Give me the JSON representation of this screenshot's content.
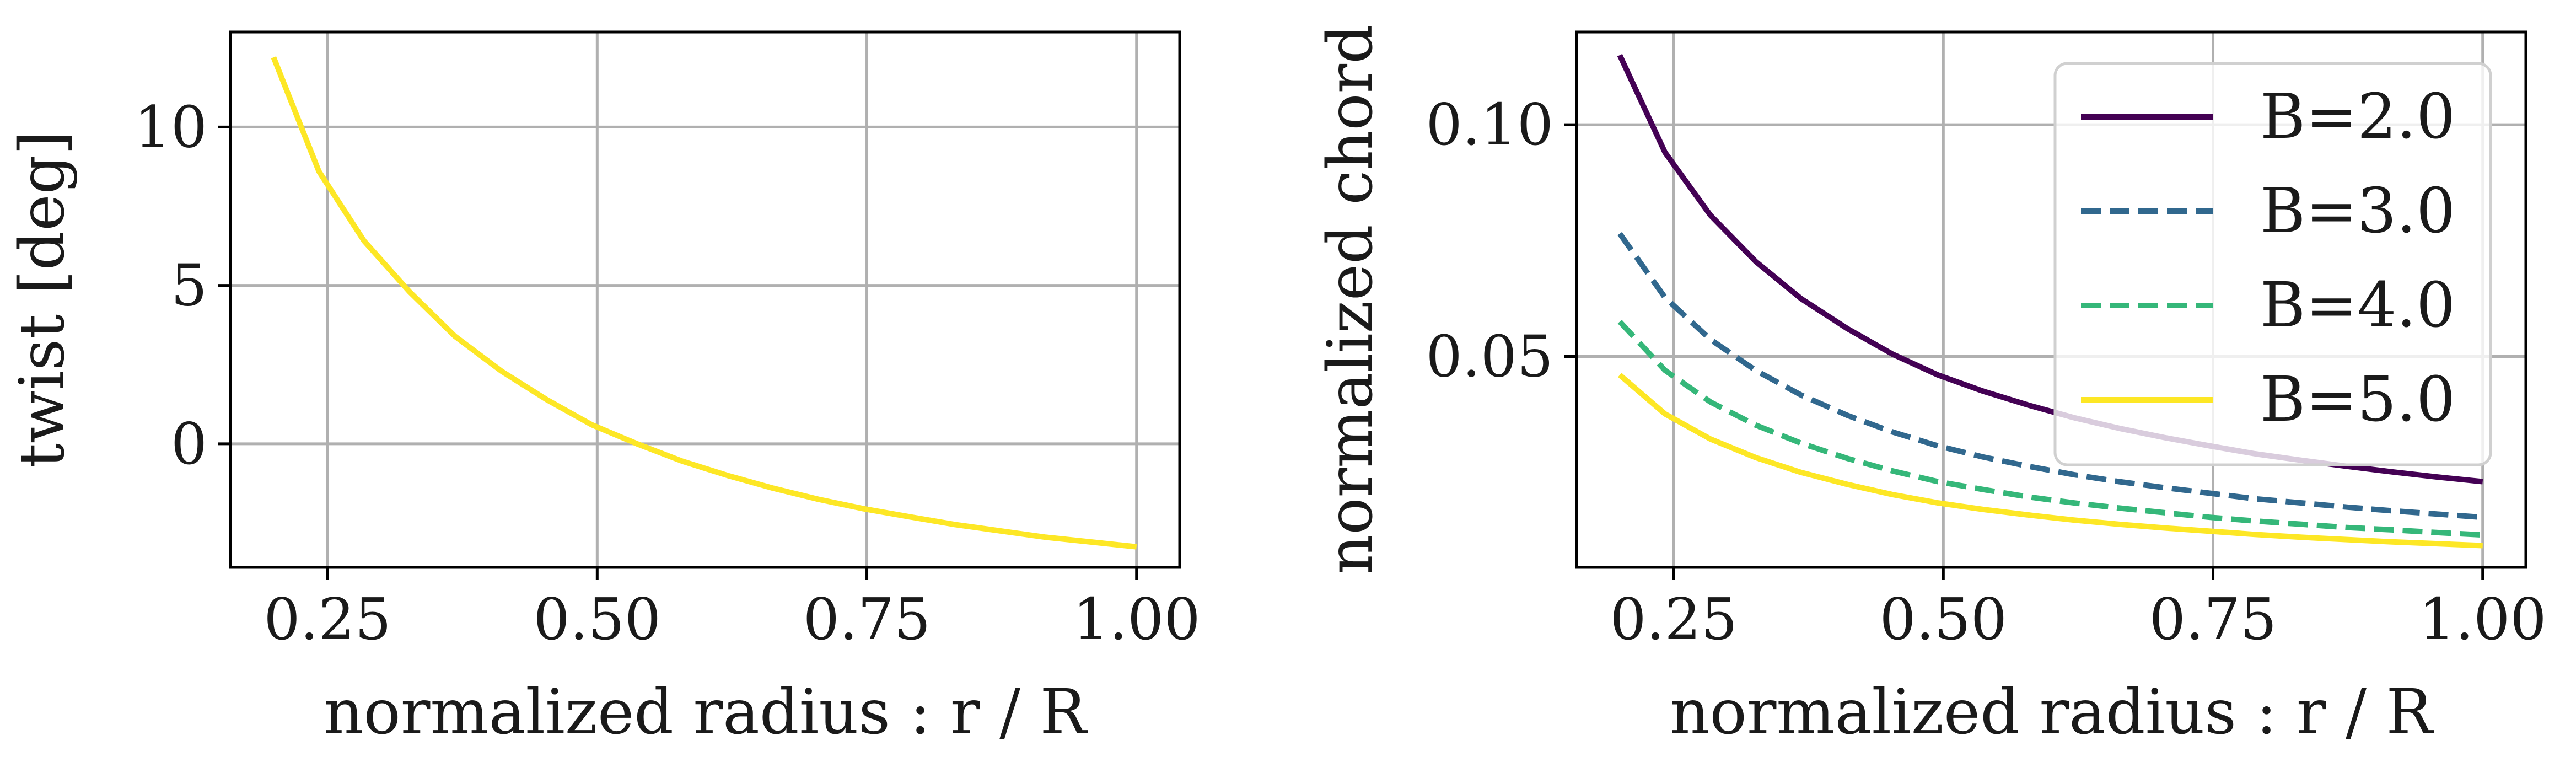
{
  "chart_data": [
    {
      "type": "line",
      "xlabel": "normalized radius : r / R",
      "ylabel": "twist [deg]",
      "xlim": [
        0.16,
        1.04
      ],
      "ylim": [
        -3.9,
        13.0
      ],
      "xticks": [
        0.25,
        0.5,
        0.75,
        1.0
      ],
      "xtick_labels": [
        "0.25",
        "0.50",
        "0.75",
        "1.00"
      ],
      "yticks": [
        0,
        5,
        10
      ],
      "ytick_labels": [
        "0",
        "5",
        "10"
      ],
      "grid": true,
      "legend": false,
      "series": [
        {
          "color": "#fde725",
          "style": "solid",
          "x": [
            0.2,
            0.242,
            0.284,
            0.326,
            0.368,
            0.411,
            0.453,
            0.495,
            0.537,
            0.579,
            0.621,
            0.663,
            0.705,
            0.747,
            0.789,
            0.832,
            0.874,
            0.916,
            0.958,
            1.0
          ],
          "y": [
            12.2,
            8.6,
            6.4,
            4.8,
            3.4,
            2.3,
            1.4,
            0.6,
            0.0,
            -0.55,
            -1.0,
            -1.4,
            -1.75,
            -2.05,
            -2.3,
            -2.55,
            -2.75,
            -2.95,
            -3.1,
            -3.25
          ]
        }
      ]
    },
    {
      "type": "line",
      "xlabel": "normalized radius : r / R",
      "ylabel": "normalized chord",
      "xlim": [
        0.16,
        1.04
      ],
      "ylim": [
        0.0045,
        0.12
      ],
      "xticks": [
        0.25,
        0.5,
        0.75,
        1.0
      ],
      "xtick_labels": [
        "0.25",
        "0.50",
        "0.75",
        "1.00"
      ],
      "yticks": [
        0.05,
        0.1
      ],
      "ytick_labels": [
        "0.05",
        "0.10"
      ],
      "grid": true,
      "legend": "upper right",
      "x": [
        0.2,
        0.242,
        0.284,
        0.326,
        0.368,
        0.411,
        0.453,
        0.495,
        0.537,
        0.579,
        0.621,
        0.663,
        0.705,
        0.747,
        0.789,
        0.832,
        0.874,
        0.916,
        0.958,
        1.0
      ],
      "series": [
        {
          "name": "B=2.0",
          "color": "#440154",
          "style": "solid",
          "y": [
            0.115,
            0.094,
            0.0805,
            0.0705,
            0.0625,
            0.056,
            0.0505,
            0.046,
            0.0425,
            0.0395,
            0.0368,
            0.0345,
            0.0325,
            0.0307,
            0.029,
            0.0276,
            0.0263,
            0.0251,
            0.024,
            0.023
          ]
        },
        {
          "name": "B=3.0",
          "color": "#31688e",
          "style": "dashed",
          "y": [
            0.0765,
            0.0627,
            0.0537,
            0.047,
            0.0417,
            0.0373,
            0.0337,
            0.0307,
            0.0283,
            0.0263,
            0.0245,
            0.023,
            0.0217,
            0.0205,
            0.0193,
            0.0184,
            0.0175,
            0.0167,
            0.016,
            0.0153
          ]
        },
        {
          "name": "B=4.0",
          "color": "#35b779",
          "style": "dashed",
          "y": [
            0.0575,
            0.047,
            0.0402,
            0.0352,
            0.0313,
            0.028,
            0.0253,
            0.023,
            0.0213,
            0.0197,
            0.0184,
            0.0173,
            0.0163,
            0.0153,
            0.0145,
            0.0138,
            0.0131,
            0.0126,
            0.012,
            0.0115
          ]
        },
        {
          "name": "B=5.0",
          "color": "#fde725",
          "style": "solid",
          "y": [
            0.046,
            0.0376,
            0.0322,
            0.0282,
            0.025,
            0.0224,
            0.0202,
            0.0184,
            0.017,
            0.0158,
            0.0147,
            0.0138,
            0.013,
            0.0123,
            0.0116,
            0.011,
            0.0105,
            0.01,
            0.0096,
            0.0092
          ]
        }
      ]
    }
  ]
}
